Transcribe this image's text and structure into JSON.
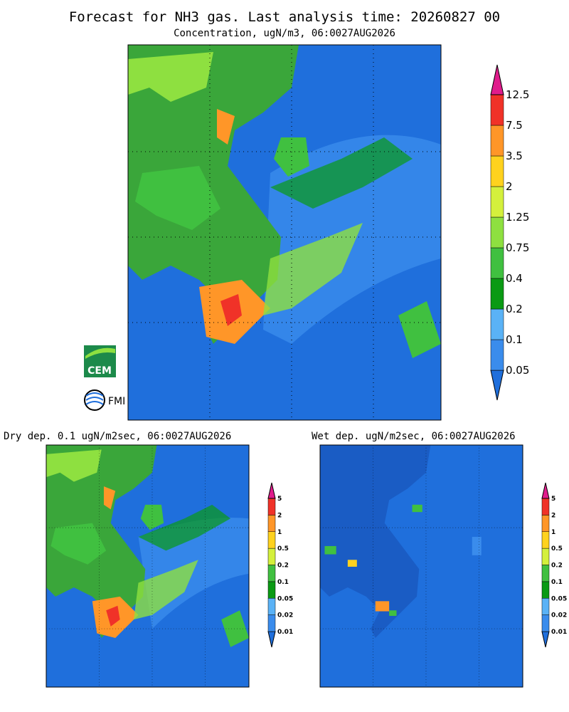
{
  "header": {
    "title": "Forecast for NH3 gas. Last analysis time: 20260827 00"
  },
  "panels": [
    {
      "title": "Concentration, ugN/m3, 06:0027AUG2026",
      "colorbar": {
        "labels": [
          "0.05",
          "0.1",
          "0.2",
          "0.4",
          "0.75",
          "1.25",
          "2",
          "3.5",
          "7.5",
          "12.5"
        ],
        "colors": [
          "#1f6fdc",
          "#3a8cec",
          "#5ab2f6",
          "#0a9a14",
          "#40c040",
          "#8ee040",
          "#d4f03c",
          "#ffd21e",
          "#ff9628",
          "#f03228",
          "#e01c8c"
        ]
      }
    },
    {
      "title": "Dry dep. 0.1 ugN/m2sec, 06:0027AUG2026",
      "colorbar": {
        "labels": [
          "0.01",
          "0.02",
          "0.05",
          "0.1",
          "0.2",
          "0.5",
          "1",
          "2",
          "5"
        ],
        "colors": [
          "#1f6fdc",
          "#3a8cec",
          "#5ab2f6",
          "#0a9a14",
          "#40c040",
          "#d4f03c",
          "#ffd21e",
          "#ff9628",
          "#f03228",
          "#e01c8c"
        ]
      }
    },
    {
      "title": "Wet dep. ugN/m2sec, 06:0027AUG2026",
      "colorbar": {
        "labels": [
          "0.01",
          "0.02",
          "0.05",
          "0.1",
          "0.2",
          "0.5",
          "1",
          "2",
          "5"
        ],
        "colors": [
          "#1f6fdc",
          "#3a8cec",
          "#5ab2f6",
          "#0a9a14",
          "#40c040",
          "#d4f03c",
          "#ffd21e",
          "#ff9628",
          "#f03228",
          "#e01c8c"
        ]
      }
    }
  ],
  "logos": {
    "cem": "CEM",
    "fmi": "FMI"
  }
}
